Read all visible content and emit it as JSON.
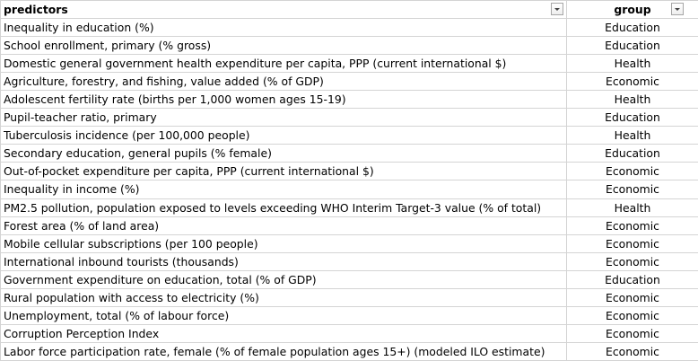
{
  "header": {
    "col_a": "predictors",
    "col_b": "group",
    "filter_icon": "dropdown-arrow-icon"
  },
  "rows": [
    {
      "predictor": "Inequality in education (%)",
      "group": "Education"
    },
    {
      "predictor": "School enrollment, primary (% gross)",
      "group": "Education"
    },
    {
      "predictor": "Domestic general government health expenditure per capita, PPP (current international $)",
      "group": "Health"
    },
    {
      "predictor": "Agriculture, forestry, and fishing, value added (% of GDP)",
      "group": "Economic"
    },
    {
      "predictor": "Adolescent fertility rate (births per 1,000 women ages 15-19)",
      "group": "Health"
    },
    {
      "predictor": "Pupil-teacher ratio, primary",
      "group": "Education"
    },
    {
      "predictor": "Tuberculosis incidence (per 100,000 people)",
      "group": "Health"
    },
    {
      "predictor": "Secondary education, general pupils (% female)",
      "group": "Education"
    },
    {
      "predictor": "Out-of-pocket expenditure per capita, PPP (current international $)",
      "group": "Economic"
    },
    {
      "predictor": "Inequality in income (%)",
      "group": "Economic"
    },
    {
      "predictor": "PM2.5 pollution, population exposed to levels exceeding WHO Interim Target-3 value (% of total)",
      "group": "Health"
    },
    {
      "predictor": "Forest area (% of land area)",
      "group": "Economic"
    },
    {
      "predictor": "Mobile cellular subscriptions (per 100 people)",
      "group": "Economic"
    },
    {
      "predictor": "International inbound tourists (thousands)",
      "group": "Economic"
    },
    {
      "predictor": "Government expenditure on education, total (% of GDP)",
      "group": "Education"
    },
    {
      "predictor": "Rural population with access to electricity (%)",
      "group": "Economic"
    },
    {
      "predictor": "Unemployment, total (% of labour force)",
      "group": "Economic"
    },
    {
      "predictor": "Corruption Perception Index",
      "group": "Economic"
    },
    {
      "predictor": "Labor force participation rate, female (% of female population ages 15+) (modeled ILO estimate)",
      "group": "Economic"
    }
  ]
}
